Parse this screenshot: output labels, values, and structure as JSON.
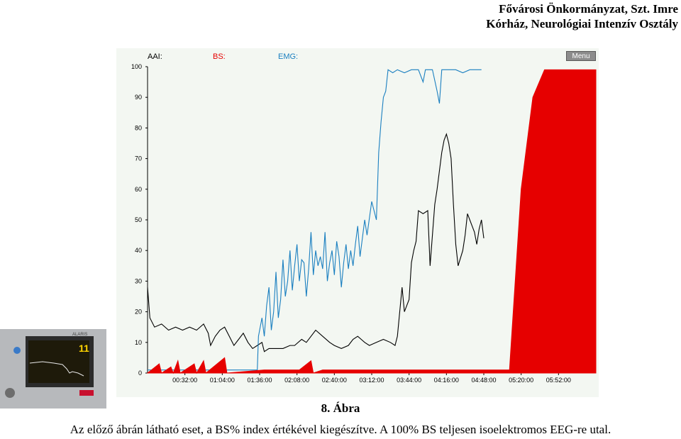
{
  "header": {
    "line1": "Fővárosi Önkormányzat, Szt. Imre",
    "line2": "Kórház, Neurológiai Intenzív Osztály"
  },
  "chart_ui": {
    "menu_label": "Menu"
  },
  "device": {
    "brand": "ALARIS",
    "reading": "11"
  },
  "caption": "8. Ábra",
  "description": "Az előző ábrán látható eset, a BS% index értékével kiegészítve. A 100% BS teljesen isoelektromos EEG-re utal.",
  "colors": {
    "aai": "#000000",
    "bs": "#e60000",
    "emg": "#1a7fc0",
    "legend_aai": "#000000",
    "legend_bs": "#e60000",
    "legend_emg": "#1a7fc0"
  },
  "chart_data": {
    "type": "line",
    "legend": [
      "AAI:",
      "BS:",
      "EMG:"
    ],
    "ylim": [
      0,
      100
    ],
    "yticks": [
      "0",
      "10",
      "20",
      "30",
      "40",
      "50",
      "60",
      "70",
      "80",
      "90",
      "100"
    ],
    "xticks": [
      "00:32:00",
      "01:04:00",
      "01:36:00",
      "02:08:00",
      "02:40:00",
      "03:12:00",
      "03:44:00",
      "04:16:00",
      "04:48:00",
      "05:20:00",
      "05:52:00"
    ],
    "x_unit": "minutes",
    "xlim": [
      0,
      384
    ],
    "series": [
      {
        "name": "AAI:",
        "points": [
          [
            0,
            28
          ],
          [
            2,
            18
          ],
          [
            6,
            15
          ],
          [
            12,
            16
          ],
          [
            18,
            14
          ],
          [
            24,
            15
          ],
          [
            30,
            14
          ],
          [
            36,
            15
          ],
          [
            42,
            14
          ],
          [
            48,
            16
          ],
          [
            52,
            13
          ],
          [
            54,
            9
          ],
          [
            58,
            12
          ],
          [
            62,
            14
          ],
          [
            66,
            15
          ],
          [
            70,
            12
          ],
          [
            74,
            9
          ],
          [
            78,
            11
          ],
          [
            82,
            13
          ],
          [
            86,
            10
          ],
          [
            90,
            8
          ],
          [
            94,
            9
          ],
          [
            98,
            10
          ],
          [
            100,
            7
          ],
          [
            104,
            8
          ],
          [
            110,
            8
          ],
          [
            116,
            8
          ],
          [
            122,
            9
          ],
          [
            126,
            9
          ],
          [
            132,
            11
          ],
          [
            136,
            10
          ],
          [
            140,
            12
          ],
          [
            144,
            14
          ],
          [
            150,
            12
          ],
          [
            156,
            10
          ],
          [
            160,
            9
          ],
          [
            166,
            8
          ],
          [
            172,
            9
          ],
          [
            176,
            11
          ],
          [
            180,
            12
          ],
          [
            186,
            10
          ],
          [
            190,
            9
          ],
          [
            196,
            10
          ],
          [
            202,
            11
          ],
          [
            208,
            10
          ],
          [
            212,
            9
          ],
          [
            214,
            12
          ],
          [
            216,
            20
          ],
          [
            218,
            28
          ],
          [
            220,
            20
          ],
          [
            224,
            24
          ],
          [
            226,
            36
          ],
          [
            228,
            40
          ],
          [
            230,
            43
          ],
          [
            232,
            53
          ],
          [
            236,
            52
          ],
          [
            240,
            53
          ],
          [
            242,
            35
          ],
          [
            244,
            45
          ],
          [
            246,
            55
          ],
          [
            248,
            60
          ],
          [
            252,
            72
          ],
          [
            254,
            76
          ],
          [
            256,
            78
          ],
          [
            258,
            75
          ],
          [
            260,
            70
          ],
          [
            262,
            55
          ],
          [
            264,
            42
          ],
          [
            266,
            35
          ],
          [
            270,
            40
          ],
          [
            272,
            45
          ],
          [
            274,
            52
          ],
          [
            276,
            50
          ],
          [
            278,
            48
          ],
          [
            280,
            46
          ],
          [
            282,
            42
          ],
          [
            284,
            47
          ],
          [
            286,
            50
          ],
          [
            288,
            44
          ]
        ]
      },
      {
        "name": "EMG:",
        "points": [
          [
            0,
            1
          ],
          [
            50,
            1
          ],
          [
            94,
            1
          ],
          [
            95,
            12
          ],
          [
            98,
            18
          ],
          [
            100,
            12
          ],
          [
            102,
            22
          ],
          [
            104,
            28
          ],
          [
            106,
            14
          ],
          [
            108,
            20
          ],
          [
            110,
            33
          ],
          [
            112,
            18
          ],
          [
            114,
            24
          ],
          [
            116,
            37
          ],
          [
            118,
            25
          ],
          [
            120,
            30
          ],
          [
            122,
            40
          ],
          [
            124,
            27
          ],
          [
            126,
            35
          ],
          [
            128,
            42
          ],
          [
            130,
            30
          ],
          [
            132,
            37
          ],
          [
            134,
            36
          ],
          [
            136,
            25
          ],
          [
            138,
            34
          ],
          [
            140,
            46
          ],
          [
            142,
            32
          ],
          [
            144,
            40
          ],
          [
            146,
            35
          ],
          [
            148,
            38
          ],
          [
            150,
            34
          ],
          [
            152,
            46
          ],
          [
            154,
            30
          ],
          [
            156,
            36
          ],
          [
            158,
            40
          ],
          [
            160,
            32
          ],
          [
            162,
            43
          ],
          [
            164,
            38
          ],
          [
            166,
            28
          ],
          [
            168,
            36
          ],
          [
            170,
            42
          ],
          [
            172,
            34
          ],
          [
            174,
            40
          ],
          [
            176,
            35
          ],
          [
            178,
            42
          ],
          [
            180,
            48
          ],
          [
            182,
            38
          ],
          [
            184,
            44
          ],
          [
            186,
            50
          ],
          [
            188,
            45
          ],
          [
            192,
            56
          ],
          [
            196,
            50
          ],
          [
            198,
            72
          ],
          [
            200,
            82
          ],
          [
            202,
            90
          ],
          [
            204,
            92
          ],
          [
            206,
            99
          ],
          [
            210,
            98
          ],
          [
            214,
            99
          ],
          [
            220,
            98
          ],
          [
            226,
            99
          ],
          [
            232,
            99
          ],
          [
            236,
            95
          ],
          [
            238,
            99
          ],
          [
            244,
            99
          ],
          [
            248,
            92
          ],
          [
            250,
            88
          ],
          [
            252,
            99
          ],
          [
            258,
            99
          ],
          [
            264,
            99
          ],
          [
            270,
            98
          ],
          [
            276,
            99
          ],
          [
            280,
            99
          ],
          [
            286,
            99
          ]
        ]
      },
      {
        "name": "BS:",
        "points": [
          [
            0,
            0
          ],
          [
            10,
            3
          ],
          [
            12,
            0
          ],
          [
            20,
            2
          ],
          [
            22,
            0
          ],
          [
            26,
            4
          ],
          [
            28,
            0
          ],
          [
            40,
            3
          ],
          [
            42,
            0
          ],
          [
            48,
            4
          ],
          [
            50,
            0
          ],
          [
            66,
            5
          ],
          [
            68,
            0
          ],
          [
            100,
            1
          ],
          [
            130,
            1
          ],
          [
            140,
            4
          ],
          [
            142,
            0
          ],
          [
            150,
            1
          ],
          [
            200,
            1
          ],
          [
            230,
            1
          ],
          [
            270,
            1
          ],
          [
            300,
            1
          ],
          [
            310,
            1
          ],
          [
            320,
            60
          ],
          [
            330,
            90
          ],
          [
            340,
            99
          ],
          [
            350,
            99
          ],
          [
            360,
            99
          ],
          [
            370,
            99
          ],
          [
            384,
            99
          ]
        ]
      }
    ]
  }
}
